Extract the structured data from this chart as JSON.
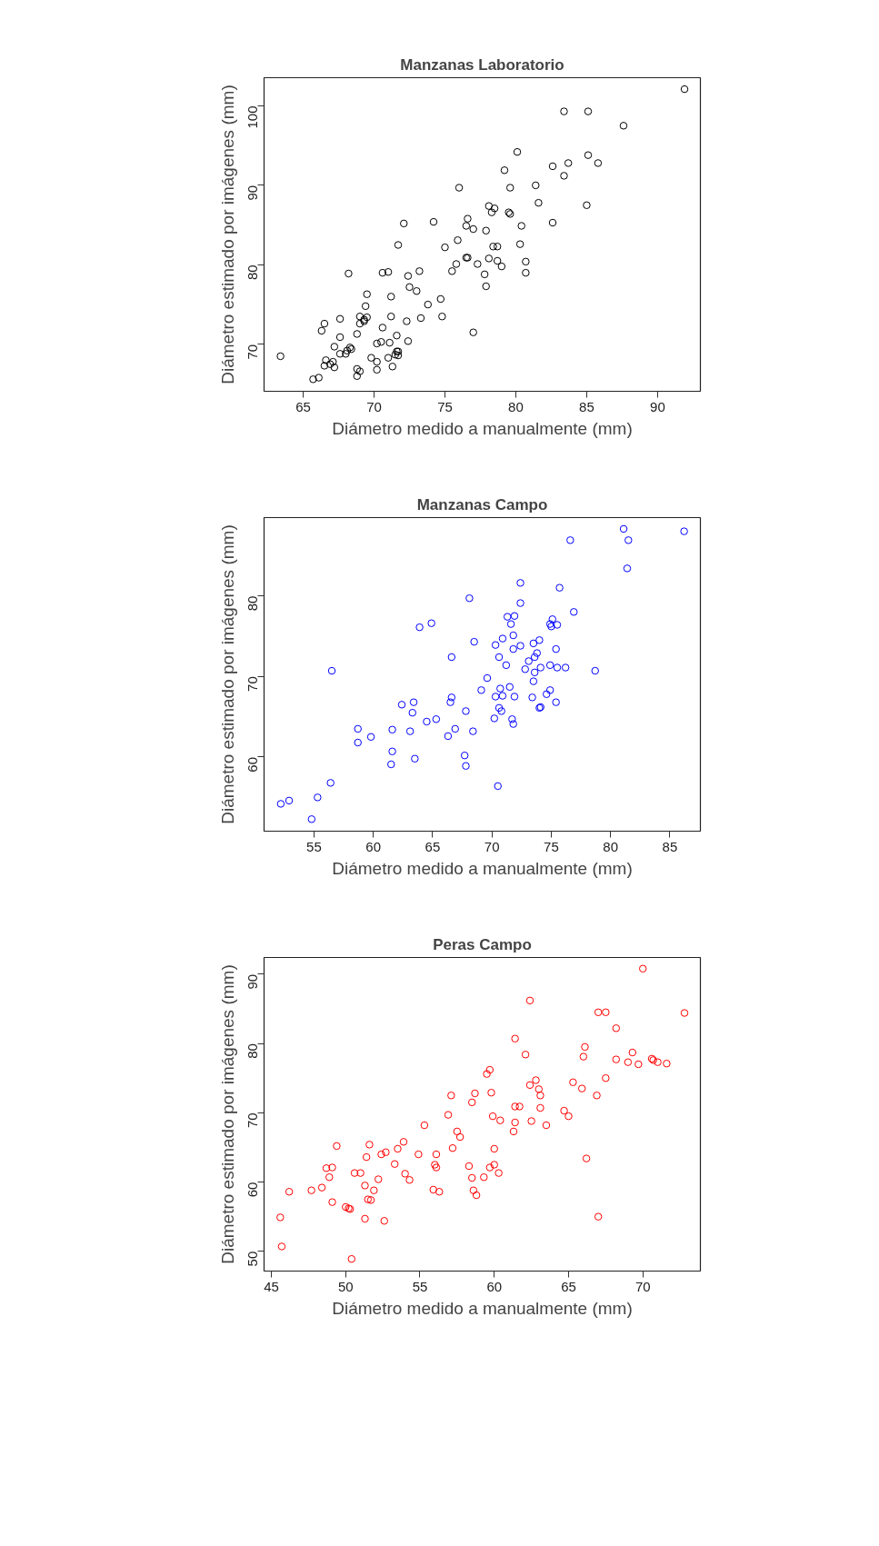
{
  "chart_data": [
    {
      "type": "scatter",
      "title": "Manzanas Laboratorio",
      "xlabel": "Diámetro medido a manualmente (mm)",
      "ylabel": "Diámetro estimado por imágenes (mm)",
      "marker": "circle",
      "xlim": [
        62.24,
        93.02
      ],
      "ylim": [
        64.09,
        103.54
      ],
      "xticks": [
        65,
        70,
        75,
        80,
        85,
        90
      ],
      "yticks": [
        70,
        80,
        90,
        100
      ],
      "series": [
        {
          "color": "#000000",
          "x": [
            91.9,
            83.4,
            85.1,
            87.6,
            80.1,
            85.1,
            83.7,
            85.8,
            82.6,
            79.2,
            83.4,
            81.4,
            76.0,
            79.6,
            81.6,
            85.0,
            78.1,
            78.5,
            78.3,
            79.5,
            79.6,
            76.6,
            72.1,
            74.2,
            82.6,
            76.5,
            80.4,
            77.0,
            77.9,
            71.7,
            75.0,
            75.9,
            78.4,
            78.7,
            80.3,
            76.5,
            76.6,
            78.1,
            80.7,
            78.7,
            75.8,
            77.3,
            79.0,
            75.5,
            73.2,
            70.6,
            71.0,
            80.7,
            68.2,
            77.8,
            72.4,
            77.9,
            72.5,
            73.0,
            69.5,
            71.2,
            74.7,
            73.8,
            69.4,
            71.2,
            74.8,
            73.3,
            69.0,
            69.5,
            67.6,
            69.3,
            69.3,
            69.0,
            72.3,
            66.5,
            66.3,
            70.6,
            77.0,
            68.8,
            71.6,
            67.6,
            72.4,
            71.1,
            70.5,
            70.2,
            67.2,
            68.3,
            68.4,
            68.1,
            67.6,
            68.0,
            71.6,
            71.7,
            71.5,
            71.7,
            63.4,
            69.8,
            71.0,
            70.2,
            66.6,
            67.1,
            66.5,
            66.9,
            67.2,
            71.3,
            68.8,
            69.0,
            68.8,
            70.2,
            65.7,
            66.1
          ],
          "values": [
            102.1,
            99.3,
            99.3,
            97.5,
            94.2,
            93.8,
            92.8,
            92.8,
            92.4,
            91.9,
            91.2,
            90.0,
            89.7,
            89.7,
            87.8,
            87.5,
            87.4,
            87.1,
            86.6,
            86.6,
            86.4,
            85.8,
            85.2,
            85.4,
            85.3,
            84.9,
            84.9,
            84.5,
            84.3,
            82.5,
            82.2,
            83.1,
            82.3,
            82.3,
            82.6,
            80.9,
            80.9,
            80.8,
            80.4,
            80.5,
            80.1,
            80.1,
            79.8,
            79.2,
            79.2,
            79.0,
            79.1,
            79.0,
            78.9,
            78.8,
            78.6,
            77.3,
            77.2,
            76.7,
            76.3,
            76.0,
            75.7,
            75.0,
            74.8,
            73.5,
            73.5,
            73.3,
            73.5,
            73.4,
            73.2,
            73.1,
            72.9,
            72.6,
            72.9,
            72.6,
            71.7,
            72.1,
            71.5,
            71.3,
            71.1,
            70.9,
            70.4,
            70.2,
            70.3,
            70.1,
            69.7,
            69.6,
            69.4,
            69.2,
            68.8,
            68.8,
            69.1,
            69.1,
            68.7,
            68.6,
            68.5,
            68.3,
            68.3,
            67.8,
            68.0,
            67.8,
            67.3,
            67.5,
            67.1,
            67.2,
            66.9,
            66.6,
            66.0,
            66.8,
            65.6,
            65.8
          ]
        }
      ]
    },
    {
      "type": "scatter",
      "title": "Manzanas Campo",
      "xlabel": "Diámetro medido a manualmente (mm)",
      "ylabel": "Diámetro estimado por imágenes (mm)",
      "marker": "circle",
      "xlim": [
        50.79,
        87.57
      ],
      "ylim": [
        50.81,
        89.7
      ],
      "xticks": [
        55,
        60,
        65,
        70,
        75,
        80,
        85
      ],
      "yticks": [
        60,
        70,
        80
      ],
      "series": [
        {
          "color": "#0000ff",
          "x": [
            81.1,
            86.2,
            76.6,
            81.5,
            81.4,
            72.4,
            75.7,
            68.1,
            72.4,
            76.9,
            71.3,
            71.9,
            75.1,
            71.6,
            74.9,
            75.0,
            75.5,
            64.9,
            63.9,
            71.8,
            70.9,
            74.0,
            68.5,
            70.3,
            73.5,
            72.4,
            71.8,
            75.4,
            73.8,
            73.6,
            66.6,
            70.6,
            73.1,
            71.2,
            74.9,
            74.1,
            75.5,
            76.2,
            72.8,
            78.7,
            56.5,
            73.6,
            69.6,
            73.5,
            69.1,
            70.7,
            71.5,
            74.9,
            74.6,
            70.3,
            70.9,
            71.9,
            73.4,
            66.6,
            66.5,
            75.4,
            63.4,
            62.4,
            70.6,
            70.8,
            74.0,
            74.1,
            67.8,
            63.3,
            64.5,
            65.3,
            70.2,
            71.7,
            71.8,
            61.6,
            58.7,
            63.1,
            66.9,
            68.4,
            66.3,
            59.8,
            58.7,
            61.6,
            67.7,
            61.5,
            63.5,
            67.8,
            56.4,
            70.5,
            55.3,
            52.9,
            52.2,
            54.8
          ],
          "values": [
            88.3,
            88.0,
            86.9,
            86.9,
            83.4,
            81.6,
            81.0,
            79.7,
            79.1,
            78.0,
            77.4,
            77.5,
            77.1,
            76.5,
            76.5,
            76.2,
            76.4,
            76.6,
            76.1,
            75.1,
            74.7,
            74.5,
            74.3,
            73.9,
            74.1,
            73.8,
            73.4,
            73.4,
            72.9,
            72.4,
            72.4,
            72.4,
            71.9,
            71.4,
            71.4,
            71.1,
            71.1,
            71.1,
            70.9,
            70.7,
            70.7,
            70.5,
            69.8,
            69.4,
            68.3,
            68.5,
            68.7,
            68.3,
            67.8,
            67.5,
            67.6,
            67.5,
            67.4,
            67.4,
            66.8,
            66.8,
            66.8,
            66.5,
            66.1,
            65.7,
            66.1,
            66.2,
            65.7,
            65.5,
            64.4,
            64.7,
            64.8,
            64.7,
            64.1,
            63.4,
            63.5,
            63.2,
            63.5,
            63.2,
            62.6,
            62.5,
            61.8,
            60.7,
            60.2,
            59.1,
            59.8,
            58.9,
            56.8,
            56.4,
            55.0,
            54.6,
            54.2,
            52.3
          ]
        }
      ]
    },
    {
      "type": "scatter",
      "title": "Peras Campo",
      "xlabel": "Diámetro medido a manualmente (mm)",
      "ylabel": "Diámetro estimado por imágenes (mm)",
      "marker": "circle",
      "xlim": [
        44.51,
        73.87
      ],
      "ylim": [
        47.15,
        92.41
      ],
      "xticks": [
        45,
        50,
        55,
        60,
        65,
        70
      ],
      "yticks": [
        50,
        60,
        70,
        80,
        90
      ],
      "series": [
        {
          "color": "#ff0000",
          "x": [
            70.0,
            62.4,
            67.0,
            67.5,
            72.8,
            68.2,
            61.4,
            66.1,
            62.1,
            66.0,
            69.3,
            68.2,
            70.6,
            70.7,
            71.0,
            69.0,
            69.7,
            71.6,
            59.7,
            59.5,
            67.5,
            62.8,
            65.3,
            62.4,
            65.9,
            63.0,
            59.8,
            58.7,
            63.1,
            57.1,
            66.9,
            58.5,
            61.4,
            61.7,
            63.1,
            64.7,
            56.9,
            59.9,
            65.0,
            60.4,
            62.5,
            61.4,
            55.3,
            63.5,
            57.5,
            61.3,
            57.7,
            53.9,
            49.4,
            51.6,
            57.2,
            60.0,
            53.5,
            52.7,
            52.4,
            54.9,
            56.1,
            51.4,
            66.2,
            53.3,
            56.0,
            60.0,
            58.3,
            56.1,
            49.1,
            59.7,
            48.7,
            54.0,
            50.6,
            51.0,
            60.3,
            48.9,
            58.5,
            59.3,
            54.3,
            52.2,
            51.3,
            48.4,
            47.7,
            51.9,
            46.2,
            55.9,
            56.3,
            58.6,
            58.8,
            51.5,
            51.7,
            49.1,
            50.0,
            50.2,
            50.3,
            51.3,
            52.6,
            67.0,
            45.6,
            45.7,
            50.4
          ],
          "values": [
            90.8,
            86.2,
            84.5,
            84.5,
            84.4,
            82.2,
            80.7,
            79.5,
            78.4,
            78.1,
            78.7,
            77.7,
            77.8,
            77.6,
            77.3,
            77.3,
            77.0,
            77.1,
            76.2,
            75.6,
            75.0,
            74.7,
            74.4,
            74.0,
            73.5,
            73.4,
            72.9,
            72.8,
            72.5,
            72.5,
            72.5,
            71.5,
            70.9,
            70.9,
            70.7,
            70.3,
            69.7,
            69.5,
            69.5,
            68.9,
            68.8,
            68.6,
            68.2,
            68.2,
            67.3,
            67.3,
            66.5,
            65.8,
            65.2,
            65.4,
            64.9,
            64.8,
            64.8,
            64.3,
            64.0,
            64.0,
            64.0,
            63.6,
            63.4,
            62.6,
            62.5,
            62.5,
            62.3,
            62.1,
            62.1,
            62.1,
            62.0,
            61.2,
            61.3,
            61.3,
            61.3,
            60.7,
            60.6,
            60.7,
            60.3,
            60.4,
            59.5,
            59.2,
            58.8,
            58.8,
            58.6,
            58.9,
            58.6,
            58.8,
            58.1,
            57.5,
            57.4,
            57.1,
            56.4,
            56.2,
            56.1,
            54.7,
            54.4,
            55.0,
            54.9,
            50.7,
            48.9
          ]
        }
      ]
    }
  ]
}
